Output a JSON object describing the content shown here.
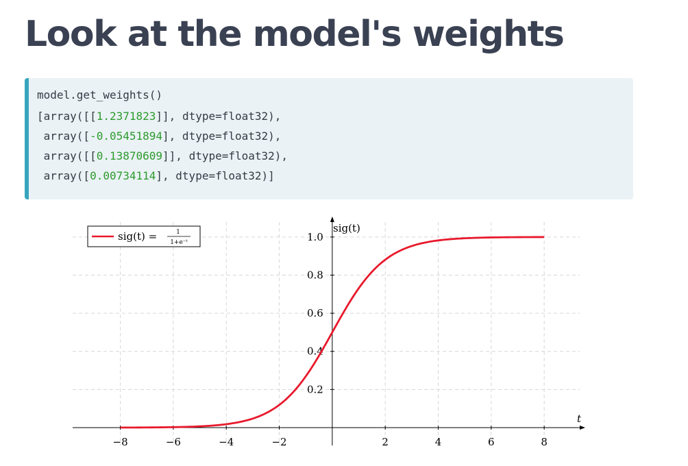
{
  "slide": {
    "title": "Look at the model's weights"
  },
  "code": {
    "input": "model.get_weights()",
    "output_lines": [
      {
        "prefix": "[array([[",
        "value": "1.2371823",
        "suffix": "]], dtype=float32),"
      },
      {
        "prefix": " array([",
        "value": "-0.05451894",
        "suffix": "], dtype=float32),"
      },
      {
        "prefix": " array([[",
        "value": "0.13870609",
        "suffix": "]], dtype=float32),"
      },
      {
        "prefix": " array([",
        "value": "0.00734114",
        "suffix": "], dtype=float32)]"
      }
    ]
  },
  "colors": {
    "title": "#3a4152",
    "code_background": "#eaf2f5",
    "code_accent_bar": "#36a6bd",
    "number_literal": "#2d9a2d",
    "curve": "#e8192c"
  },
  "chart_data": {
    "type": "line",
    "function": "sigmoid",
    "title": "",
    "xlabel": "t",
    "ylabel": "sig(t)",
    "legend": {
      "placement": "top-left",
      "entries": [
        {
          "name_left": "sig(t) =",
          "fraction_numerator": "1",
          "fraction_denominator": "1+e⁻ᵗ",
          "color": "#e8192c"
        }
      ]
    },
    "x_range": [
      -8,
      8
    ],
    "xlim": [
      -9.8,
      9.6
    ],
    "ylim": [
      0,
      1.1
    ],
    "x_ticks": [
      -8,
      -6,
      -4,
      -2,
      2,
      4,
      6,
      8
    ],
    "x_tick_labels": [
      "−8",
      "−6",
      "−4",
      "−2",
      "2",
      "4",
      "6",
      "8"
    ],
    "y_ticks": [
      0.2,
      0.4,
      0.6,
      0.8,
      1.0
    ],
    "y_tick_labels": [
      "0.2",
      "0.4",
      "0.6",
      "0.8",
      "1.0"
    ],
    "grid": true,
    "series": [
      {
        "x": [
          -8,
          -7,
          -6,
          -5,
          -4,
          -3,
          -2,
          -1,
          0,
          1,
          2,
          3,
          4,
          5,
          6,
          7,
          8
        ],
        "y": [
          0.0003,
          0.0009,
          0.0025,
          0.0067,
          0.018,
          0.047,
          0.119,
          0.269,
          0.5,
          0.731,
          0.881,
          0.953,
          0.982,
          0.993,
          0.998,
          0.999,
          1.0
        ]
      }
    ]
  }
}
